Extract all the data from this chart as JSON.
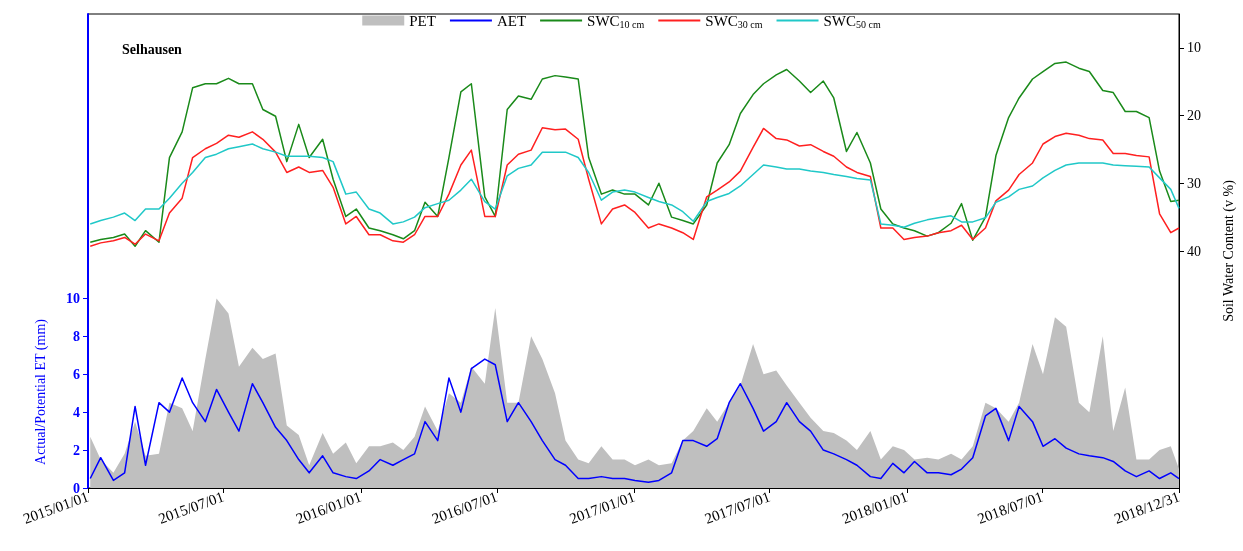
{
  "chart_data": {
    "type": "line",
    "ylabel": "Actual/Potential ET (mm)",
    "y2label": "Soil Water Content (v %)",
    "annotations": [
      "Selhausen"
    ],
    "legend": "top",
    "grid": false,
    "marker": "none",
    "line_style": "solid",
    "xlim": [
      "2015-01-01",
      "2018-12-31"
    ],
    "xticks": [
      {
        "value": "2015-01-01",
        "label": "2015/01/01"
      },
      {
        "value": "2015-07-01",
        "label": "2015/07/01"
      },
      {
        "value": "2016-01-01",
        "label": "2016/01/01"
      },
      {
        "value": "2016-07-01",
        "label": "2016/07/01"
      },
      {
        "value": "2017-01-01",
        "label": "2017/01/01"
      },
      {
        "value": "2017-07-01",
        "label": "2017/07/01"
      },
      {
        "value": "2018-01-01",
        "label": "2018/01/01"
      },
      {
        "value": "2018-07-01",
        "label": "2018/07/01"
      },
      {
        "value": "2018-12-31",
        "label": "2018/12/31"
      }
    ],
    "ylim": [
      0,
      25
    ],
    "yticks": [
      0,
      2,
      4,
      6,
      8,
      10
    ],
    "y2lim": [
      75,
      5
    ],
    "y2ticks": [
      10,
      20,
      30,
      40
    ],
    "x": [
      "2015-01-04",
      "2015-01-18",
      "2015-02-04",
      "2015-02-19",
      "2015-03-05",
      "2015-03-19",
      "2015-04-06",
      "2015-04-20",
      "2015-05-07",
      "2015-05-21",
      "2015-06-07",
      "2015-06-22",
      "2015-07-08",
      "2015-07-22",
      "2015-08-09",
      "2015-08-23",
      "2015-09-09",
      "2015-09-24",
      "2015-10-10",
      "2015-10-24",
      "2015-11-11",
      "2015-11-25",
      "2015-12-12",
      "2015-12-26",
      "2016-01-12",
      "2016-01-27",
      "2016-02-13",
      "2016-02-27",
      "2016-03-13",
      "2016-03-27",
      "2016-04-13",
      "2016-04-28",
      "2016-05-14",
      "2016-05-28",
      "2016-06-15",
      "2016-06-29",
      "2016-07-15",
      "2016-07-30",
      "2016-08-16",
      "2016-08-31",
      "2016-09-17",
      "2016-10-01",
      "2016-10-18",
      "2016-11-01",
      "2016-11-18",
      "2016-12-03",
      "2016-12-19",
      "2017-01-02",
      "2017-01-20",
      "2017-02-03",
      "2017-02-20",
      "2017-03-07",
      "2017-03-21",
      "2017-04-08",
      "2017-04-22",
      "2017-05-08",
      "2017-05-23",
      "2017-06-09",
      "2017-06-23",
      "2017-07-10",
      "2017-07-24",
      "2017-08-10",
      "2017-08-25",
      "2017-09-11",
      "2017-09-25",
      "2017-10-12",
      "2017-10-26",
      "2017-11-13",
      "2017-11-27",
      "2017-12-13",
      "2017-12-28",
      "2018-01-11",
      "2018-01-28",
      "2018-02-12",
      "2018-03-01",
      "2018-03-15",
      "2018-03-30",
      "2018-04-16",
      "2018-04-30",
      "2018-05-17",
      "2018-05-31",
      "2018-06-18",
      "2018-07-02",
      "2018-07-18",
      "2018-08-02",
      "2018-08-19",
      "2018-09-02",
      "2018-09-20",
      "2018-10-04",
      "2018-10-20",
      "2018-11-04",
      "2018-11-21",
      "2018-12-05",
      "2018-12-20",
      "2018-12-31"
    ],
    "series": [
      {
        "name": "PET",
        "type": "area",
        "color": "#bfbfbf",
        "values": [
          2.7,
          1.5,
          0.8,
          1.8,
          3.5,
          1.7,
          1.8,
          4.5,
          4.2,
          3,
          6.8,
          10,
          9.2,
          6.4,
          7.4,
          6.8,
          7.1,
          3.3,
          2.8,
          1.2,
          2.9,
          1.8,
          2.4,
          1.3,
          2.2,
          2.2,
          2.4,
          2,
          2.7,
          4.3,
          3,
          5,
          4.5,
          6.4,
          5.5,
          9.5,
          4.5,
          4.5,
          8,
          6.8,
          5,
          2.5,
          1.5,
          1.3,
          2.2,
          1.5,
          1.5,
          1.2,
          1.5,
          1.2,
          1.3,
          2.5,
          3,
          4.2,
          3.5,
          4.5,
          5.4,
          7.6,
          6,
          6.2,
          5.4,
          4.5,
          3.7,
          3,
          2.9,
          2.5,
          2,
          3,
          1.5,
          2.2,
          2,
          1.5,
          1.6,
          1.5,
          1.8,
          1.5,
          2.2,
          4.5,
          4.2,
          3.5,
          4.5,
          7.6,
          6,
          9,
          8.5,
          4.5,
          4,
          8,
          3,
          5.3,
          1.5,
          1.5,
          2,
          2.2,
          1
        ]
      },
      {
        "name": "AET",
        "color": "#0000ff",
        "values": [
          0.5,
          1.6,
          0.4,
          0.8,
          4.3,
          1.2,
          4.5,
          4,
          5.8,
          4.5,
          3.5,
          5.2,
          4,
          3,
          5.5,
          4.5,
          3.2,
          2.5,
          1.5,
          0.8,
          1.7,
          0.8,
          0.6,
          0.5,
          0.9,
          1.5,
          1.2,
          1.5,
          1.8,
          3.5,
          2.5,
          5.8,
          4,
          6.3,
          6.8,
          6.5,
          3.5,
          4.5,
          3.5,
          2.5,
          1.5,
          1.2,
          0.5,
          0.5,
          0.6,
          0.5,
          0.5,
          0.4,
          0.3,
          0.4,
          0.8,
          2.5,
          2.5,
          2.2,
          2.6,
          4.5,
          5.5,
          4.2,
          3,
          3.5,
          4.5,
          3.5,
          3,
          2,
          1.8,
          1.5,
          1.2,
          0.6,
          0.5,
          1.3,
          0.8,
          1.4,
          0.8,
          0.8,
          0.7,
          1,
          1.6,
          3.8,
          4.2,
          2.5,
          4.3,
          3.5,
          2.2,
          2.6,
          2.1,
          1.8,
          1.7,
          1.6,
          1.4,
          0.9,
          0.6,
          0.9,
          0.5,
          0.8,
          0.5
        ]
      },
      {
        "name": "SWC$_{10 cm}$",
        "axis": "y2",
        "color": "#1a8a1a",
        "values": [
          38.7,
          38.3,
          38,
          37.5,
          39.3,
          37,
          38.7,
          26.2,
          22.4,
          15.9,
          15.3,
          15.3,
          14.5,
          15.3,
          15.3,
          19.1,
          20.1,
          26.8,
          21.3,
          26.2,
          23.5,
          29.4,
          34.9,
          33.8,
          36.6,
          37,
          37.6,
          38.2,
          37,
          32.8,
          34.9,
          26.2,
          16.5,
          15.3,
          32,
          34.9,
          19.1,
          17.1,
          17.6,
          14.6,
          14.1,
          14.3,
          14.6,
          26.2,
          31.6,
          31,
          31.6,
          31.6,
          33.2,
          30,
          35,
          35.5,
          36,
          33.2,
          27,
          24.3,
          19.7,
          16.9,
          15.3,
          14,
          13.2,
          14.9,
          16.6,
          14.9,
          17.4,
          25.3,
          22.5,
          27,
          33.8,
          36,
          36.6,
          37,
          37.8,
          37.3,
          35.9,
          33,
          38.4,
          35,
          25.9,
          20.3,
          17.4,
          14.6,
          13.5,
          12.3,
          12.1,
          13,
          13.5,
          16.3,
          16.6,
          19.4,
          19.4,
          20.3,
          28.2,
          32.7,
          32.5
        ]
      },
      {
        "name": "SWC$_{30 cm}$",
        "axis": "y2",
        "color": "#ff2020",
        "values": [
          39.3,
          38.8,
          38.5,
          38,
          39,
          37.5,
          38.5,
          34.4,
          32.2,
          26.2,
          24.9,
          24.1,
          22.9,
          23.2,
          22.4,
          23.5,
          25.4,
          28.4,
          27.6,
          28.4,
          28.1,
          30.6,
          36,
          34.9,
          37.6,
          37.6,
          38.5,
          38.7,
          37.6,
          34.9,
          34.9,
          31.6,
          27.3,
          25.1,
          34.9,
          34.9,
          27.3,
          25.7,
          25.1,
          21.8,
          22.1,
          22,
          23.5,
          29.4,
          36,
          33.8,
          33.2,
          34.3,
          36.6,
          36,
          36.6,
          37.3,
          38.3,
          32,
          31,
          29.8,
          28.2,
          24.7,
          21.9,
          23.4,
          23.6,
          24.5,
          24.3,
          25.3,
          26,
          27.6,
          28.4,
          29,
          36.6,
          36.6,
          38.3,
          38,
          37.8,
          37.3,
          37,
          36.2,
          38.3,
          36.6,
          32.6,
          31,
          28.7,
          27,
          24.2,
          23.1,
          22.6,
          22.9,
          23.4,
          23.6,
          25.6,
          25.6,
          25.9,
          26.1,
          34.5,
          37.3,
          36.6
        ]
      },
      {
        "name": "SWC$_{50 cm}$",
        "axis": "y2",
        "color": "#20c8c8",
        "values": [
          36,
          35.5,
          35,
          34.4,
          35.5,
          33.8,
          33.8,
          32.2,
          30,
          28.4,
          26.2,
          25.7,
          24.9,
          24.6,
          24.2,
          24.9,
          25.4,
          26,
          26,
          26,
          26.2,
          26.8,
          31.6,
          31.3,
          33.8,
          34.4,
          36,
          35.7,
          35,
          33.6,
          33,
          32.5,
          31,
          29.4,
          32.7,
          33.8,
          28.9,
          27.8,
          27.3,
          25.4,
          25.4,
          25.4,
          26.2,
          28.4,
          32.5,
          31.3,
          31,
          31.3,
          32.1,
          32.7,
          33.2,
          34.2,
          35.6,
          32.7,
          32.1,
          31.5,
          30.4,
          28.7,
          27.3,
          27.6,
          27.9,
          27.9,
          28.2,
          28.4,
          28.7,
          29,
          29.3,
          29.5,
          36,
          36.2,
          36.5,
          35.9,
          35.4,
          35.1,
          34.8,
          35.7,
          35.7,
          35.1,
          32.8,
          32,
          30.9,
          30.4,
          29.2,
          28.1,
          27.3,
          27,
          27,
          27,
          27.3,
          27.4,
          27.5,
          27.6,
          29.2,
          30.9,
          33.7
        ]
      }
    ]
  }
}
